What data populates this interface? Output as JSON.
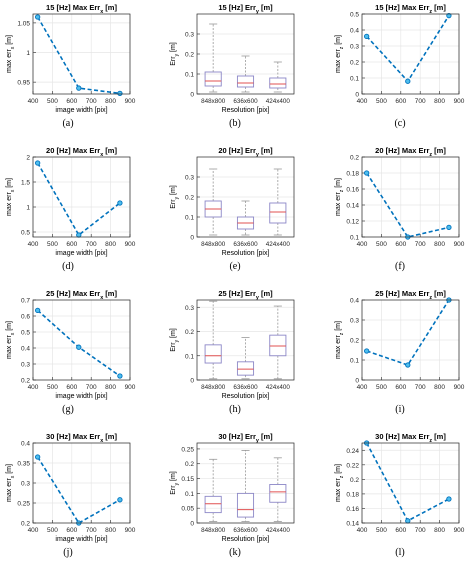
{
  "chart_data": [
    {
      "type": "line",
      "title": "15 [Hz] Max Err_x [m]",
      "title_main": "15 [Hz] Max Err",
      "title_sub": "x",
      "title_tail": " [m]",
      "xlabel": "image width [pix]",
      "ylabel": "max err_x [m]",
      "ylabel_main": "max err",
      "ylabel_sub": "x",
      "ylabel_tail": " [m]",
      "xlim": [
        400,
        900
      ],
      "ylim": [
        0.93,
        1.065
      ],
      "xticks": [
        400,
        500,
        600,
        700,
        800,
        900
      ],
      "yticks": [
        0.95,
        1,
        1.05
      ],
      "ytick_labels": [
        "0.95",
        "1",
        "1.05"
      ],
      "x": [
        424,
        636,
        848
      ],
      "y": [
        1.06,
        0.94,
        0.931
      ],
      "grid": true,
      "caption": "(a)"
    },
    {
      "type": "boxplot",
      "title": "15 [Hz] Err_y [m]",
      "title_main": "15 [Hz] Err",
      "title_sub": "y",
      "title_tail": " [m]",
      "xlabel": "Resolution [pix]",
      "ylabel": "Err_y [m]",
      "ylabel_main": "Err",
      "ylabel_sub": "y",
      "ylabel_tail": " [m]",
      "categories": [
        "848x800",
        "636x600",
        "424x400"
      ],
      "ylim": [
        0,
        0.4
      ],
      "yticks": [
        0,
        0.1,
        0.2,
        0.3
      ],
      "ytick_labels": [
        "0",
        "0.1",
        "0.2",
        "0.3"
      ],
      "boxes": [
        {
          "min": 0.01,
          "q1": 0.04,
          "median": 0.065,
          "q3": 0.11,
          "max": 0.35
        },
        {
          "min": 0.01,
          "q1": 0.035,
          "median": 0.055,
          "q3": 0.09,
          "max": 0.19
        },
        {
          "min": 0.01,
          "q1": 0.03,
          "median": 0.05,
          "q3": 0.08,
          "max": 0.16
        }
      ],
      "grid": true,
      "caption": "(b)"
    },
    {
      "type": "line",
      "title": "15 [Hz] Max Err_z [m]",
      "title_main": "15 [Hz] Max Err",
      "title_sub": "z",
      "title_tail": " [m]",
      "xlabel": "",
      "ylabel": "max err_z [m]",
      "ylabel_main": "max err",
      "ylabel_sub": "z",
      "ylabel_tail": " [m]",
      "xlim": [
        400,
        900
      ],
      "ylim": [
        0,
        0.5
      ],
      "xticks": [
        400,
        500,
        600,
        700,
        800,
        900
      ],
      "yticks": [
        0,
        0.1,
        0.2,
        0.3,
        0.4,
        0.5
      ],
      "ytick_labels": [
        "0",
        "0.1",
        "0.2",
        "0.3",
        "0.4",
        "0.5"
      ],
      "x": [
        424,
        636,
        848
      ],
      "y": [
        0.36,
        0.08,
        0.49
      ],
      "grid": true,
      "caption": "(c)"
    },
    {
      "type": "line",
      "title": "20 [Hz] Max Err_x [m]",
      "title_main": "20 [Hz] Max Err",
      "title_sub": "x",
      "title_tail": " [m]",
      "xlabel": "image width [pix]",
      "ylabel": "max err_x [m]",
      "ylabel_main": "max err",
      "ylabel_sub": "x",
      "ylabel_tail": " [m]",
      "xlim": [
        400,
        900
      ],
      "ylim": [
        0.4,
        2
      ],
      "xticks": [
        400,
        500,
        600,
        700,
        800,
        900
      ],
      "yticks": [
        0.5,
        1,
        1.5,
        2
      ],
      "ytick_labels": [
        "0.5",
        "1",
        "1.5",
        "2"
      ],
      "x": [
        424,
        636,
        848
      ],
      "y": [
        1.88,
        0.44,
        1.08
      ],
      "grid": true,
      "caption": "(d)"
    },
    {
      "type": "boxplot",
      "title": "20 [Hz] Err_y [m]",
      "title_main": "20 [Hz] Err",
      "title_sub": "y",
      "title_tail": " [m]",
      "xlabel": "Resolution [pix]",
      "ylabel": "Err_y [m]",
      "ylabel_main": "Err",
      "ylabel_sub": "y",
      "ylabel_tail": " [m]",
      "categories": [
        "848x800",
        "636x600",
        "424x400"
      ],
      "ylim": [
        0,
        0.4
      ],
      "yticks": [
        0,
        0.1,
        0.2,
        0.3
      ],
      "ytick_labels": [
        "0",
        "0.1",
        "0.2",
        "0.3"
      ],
      "boxes": [
        {
          "min": 0.01,
          "q1": 0.1,
          "median": 0.14,
          "q3": 0.18,
          "max": 0.34
        },
        {
          "min": 0.01,
          "q1": 0.04,
          "median": 0.07,
          "q3": 0.1,
          "max": 0.18
        },
        {
          "min": 0.01,
          "q1": 0.07,
          "median": 0.125,
          "q3": 0.17,
          "max": 0.34
        }
      ],
      "grid": true,
      "caption": "(e)"
    },
    {
      "type": "line",
      "title": "20 [Hz] Max Err_z [m]",
      "title_main": "20 [Hz] Max Err",
      "title_sub": "z",
      "title_tail": " [m]",
      "xlabel": "",
      "ylabel": "max err_z [m]",
      "ylabel_main": "max err",
      "ylabel_sub": "z",
      "ylabel_tail": " [m]",
      "xlim": [
        400,
        900
      ],
      "ylim": [
        0.1,
        0.2
      ],
      "xticks": [
        400,
        500,
        600,
        700,
        800,
        900
      ],
      "yticks": [
        0.1,
        0.12,
        0.14,
        0.16,
        0.18,
        0.2
      ],
      "ytick_labels": [
        "0.1",
        "0.12",
        "0.14",
        "0.16",
        "0.18",
        "0.2"
      ],
      "x": [
        424,
        636,
        848
      ],
      "y": [
        0.18,
        0.1,
        0.112
      ],
      "grid": true,
      "caption": "(f)"
    },
    {
      "type": "line",
      "title": "25 [Hz] Max Err_x [m]",
      "title_main": "25 [Hz] Max Err",
      "title_sub": "x",
      "title_tail": " [m]",
      "xlabel": "image width [pix]",
      "ylabel": "max err_x [m]",
      "ylabel_main": "max err",
      "ylabel_sub": "x",
      "ylabel_tail": " [m]",
      "xlim": [
        400,
        900
      ],
      "ylim": [
        0.2,
        0.7
      ],
      "xticks": [
        400,
        500,
        600,
        700,
        800,
        900
      ],
      "yticks": [
        0.2,
        0.3,
        0.4,
        0.5,
        0.6,
        0.7
      ],
      "ytick_labels": [
        "0.2",
        "0.3",
        "0.4",
        "0.5",
        "0.6",
        "0.7"
      ],
      "x": [
        424,
        636,
        848
      ],
      "y": [
        0.635,
        0.405,
        0.225
      ],
      "grid": true,
      "caption": "(g)"
    },
    {
      "type": "boxplot",
      "title": "25 [Hz] Err_y [m]",
      "title_main": "25 [Hz] Err",
      "title_sub": "y",
      "title_tail": " [m]",
      "xlabel": "Resolution [pix]",
      "ylabel": "Err_y [m]",
      "ylabel_main": "Err",
      "ylabel_sub": "y",
      "ylabel_tail": " [m]",
      "categories": [
        "848x800",
        "636x600",
        "424x400"
      ],
      "ylim": [
        0,
        0.33
      ],
      "yticks": [
        0,
        0.1,
        0.2,
        0.3
      ],
      "ytick_labels": [
        "0",
        "0.1",
        "0.2",
        "0.3"
      ],
      "boxes": [
        {
          "min": 0.005,
          "q1": 0.07,
          "median": 0.1,
          "q3": 0.145,
          "max": 0.325
        },
        {
          "min": 0.005,
          "q1": 0.02,
          "median": 0.045,
          "q3": 0.075,
          "max": 0.175
        },
        {
          "min": 0.005,
          "q1": 0.1,
          "median": 0.14,
          "q3": 0.185,
          "max": 0.305
        }
      ],
      "grid": true,
      "caption": "(h)"
    },
    {
      "type": "line",
      "title": "25 [Hz] Max Err_z [m]",
      "title_main": "25 [Hz] Max Err",
      "title_sub": "z",
      "title_tail": " [m]",
      "xlabel": "",
      "ylabel": "max err_z [m]",
      "ylabel_main": "max err",
      "ylabel_sub": "z",
      "ylabel_tail": " [m]",
      "xlim": [
        400,
        900
      ],
      "ylim": [
        0,
        0.4
      ],
      "xticks": [
        400,
        500,
        600,
        700,
        800,
        900
      ],
      "yticks": [
        0,
        0.1,
        0.2,
        0.3,
        0.4
      ],
      "ytick_labels": [
        "0",
        "0.1",
        "0.2",
        "0.3",
        "0.4"
      ],
      "x": [
        424,
        636,
        848
      ],
      "y": [
        0.145,
        0.075,
        0.4
      ],
      "grid": true,
      "caption": "(i)"
    },
    {
      "type": "line",
      "title": "30 [Hz] Max Err_x [m]",
      "title_main": "30 [Hz] Max Err",
      "title_sub": "x",
      "title_tail": " [m]",
      "xlabel": "image width [pix]",
      "ylabel": "max err_x [m]",
      "ylabel_main": "max err",
      "ylabel_sub": "x",
      "ylabel_tail": " [m]",
      "xlim": [
        400,
        900
      ],
      "ylim": [
        0.2,
        0.4
      ],
      "xticks": [
        400,
        500,
        600,
        700,
        800,
        900
      ],
      "yticks": [
        0.2,
        0.25,
        0.3,
        0.35,
        0.4
      ],
      "ytick_labels": [
        "0.2",
        "0.25",
        "0.3",
        "0.35",
        "0.4"
      ],
      "x": [
        424,
        636,
        848
      ],
      "y": [
        0.365,
        0.2,
        0.258
      ],
      "grid": true,
      "caption": "(j)"
    },
    {
      "type": "boxplot",
      "title": "30 [Hz] Err_y [m]",
      "title_main": "30 [Hz] Err",
      "title_sub": "y",
      "title_tail": " [m]",
      "xlabel": "Resolution [pix]",
      "ylabel": "Err_y [m]",
      "ylabel_main": "Err",
      "ylabel_sub": "y",
      "ylabel_tail": " [m]",
      "categories": [
        "848x800",
        "636x600",
        "424x400"
      ],
      "ylim": [
        0,
        0.27
      ],
      "yticks": [
        0,
        0.05,
        0.1,
        0.15,
        0.2,
        0.25
      ],
      "ytick_labels": [
        "0",
        "0.05",
        "0.1",
        "0.15",
        "0.2",
        "0.25"
      ],
      "boxes": [
        {
          "min": 0.005,
          "q1": 0.035,
          "median": 0.065,
          "q3": 0.09,
          "max": 0.215
        },
        {
          "min": 0.005,
          "q1": 0.02,
          "median": 0.045,
          "q3": 0.1,
          "max": 0.245
        },
        {
          "min": 0.005,
          "q1": 0.07,
          "median": 0.105,
          "q3": 0.13,
          "max": 0.22
        }
      ],
      "grid": true,
      "caption": "(k)"
    },
    {
      "type": "line",
      "title": "30 [Hz] Max Err_z [m]",
      "title_main": "30 [Hz] Max Err",
      "title_sub": "z",
      "title_tail": " [m]",
      "xlabel": "",
      "ylabel": "max err_z [m]",
      "ylabel_main": "max err",
      "ylabel_sub": "z",
      "ylabel_tail": " [m]",
      "xlim": [
        400,
        900
      ],
      "ylim": [
        0.14,
        0.25
      ],
      "xticks": [
        400,
        500,
        600,
        700,
        800,
        900
      ],
      "yticks": [
        0.14,
        0.16,
        0.18,
        0.2,
        0.22,
        0.24
      ],
      "ytick_labels": [
        "0.14",
        "0.16",
        "0.18",
        "0.2",
        "0.22",
        "0.24"
      ],
      "x": [
        424,
        636,
        848
      ],
      "y": [
        0.25,
        0.143,
        0.173
      ],
      "grid": true,
      "caption": "(l)"
    }
  ],
  "colors": {
    "line": "#0072bd",
    "marker_fill": "#4dbeee",
    "box": "#8c87c7",
    "median": "#e05050",
    "whisker": "#999999",
    "grid": "#e6e6e6",
    "axis": "#262626"
  }
}
